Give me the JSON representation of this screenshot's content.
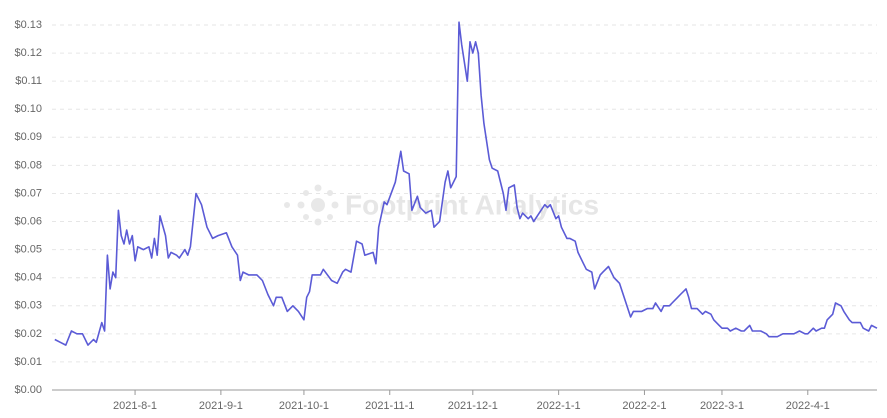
{
  "chart_data": {
    "type": "line",
    "watermark": "Footprint Analytics",
    "x": [
      "2021-07-03",
      "2021-07-05",
      "2021-07-07",
      "2021-07-09",
      "2021-07-11",
      "2021-07-13",
      "2021-07-15",
      "2021-07-17",
      "2021-07-18",
      "2021-07-20",
      "2021-07-21",
      "2021-07-22",
      "2021-07-23",
      "2021-07-24",
      "2021-07-25",
      "2021-07-26",
      "2021-07-27",
      "2021-07-28",
      "2021-07-29",
      "2021-07-30",
      "2021-07-31",
      "2021-08-01",
      "2021-08-02",
      "2021-08-04",
      "2021-08-06",
      "2021-08-07",
      "2021-08-08",
      "2021-08-09",
      "2021-08-10",
      "2021-08-12",
      "2021-08-13",
      "2021-08-14",
      "2021-08-16",
      "2021-08-17",
      "2021-08-19",
      "2021-08-20",
      "2021-08-21",
      "2021-08-23",
      "2021-08-25",
      "2021-08-27",
      "2021-08-29",
      "2021-08-31",
      "2021-09-03",
      "2021-09-05",
      "2021-09-07",
      "2021-09-08",
      "2021-09-09",
      "2021-09-11",
      "2021-09-14",
      "2021-09-16",
      "2021-09-18",
      "2021-09-20",
      "2021-09-21",
      "2021-09-23",
      "2021-09-25",
      "2021-09-27",
      "2021-09-29",
      "2021-10-01",
      "2021-10-02",
      "2021-10-03",
      "2021-10-04",
      "2021-10-07",
      "2021-10-08",
      "2021-10-11",
      "2021-10-13",
      "2021-10-15",
      "2021-10-16",
      "2021-10-18",
      "2021-10-20",
      "2021-10-22",
      "2021-10-23",
      "2021-10-26",
      "2021-10-27",
      "2021-10-28",
      "2021-10-30",
      "2021-10-31",
      "2021-11-03",
      "2021-11-05",
      "2021-11-06",
      "2021-11-08",
      "2021-11-09",
      "2021-11-11",
      "2021-11-12",
      "2021-11-14",
      "2021-11-16",
      "2021-11-17",
      "2021-11-19",
      "2021-11-21",
      "2021-11-22",
      "2021-11-23",
      "2021-11-25",
      "2021-11-26",
      "2021-11-27",
      "2021-11-29",
      "2021-11-30",
      "2021-12-01",
      "2021-12-02",
      "2021-12-03",
      "2021-12-04",
      "2021-12-05",
      "2021-12-07",
      "2021-12-08",
      "2021-12-10",
      "2021-12-12",
      "2021-12-13",
      "2021-12-14",
      "2021-12-16",
      "2021-12-17",
      "2021-12-18",
      "2021-12-19",
      "2021-12-21",
      "2021-12-22",
      "2021-12-23",
      "2021-12-25",
      "2021-12-27",
      "2021-12-28",
      "2021-12-29",
      "2021-12-31",
      "2022-01-01",
      "2022-01-02",
      "2022-01-04",
      "2022-01-05",
      "2022-01-07",
      "2022-01-08",
      "2022-01-10",
      "2022-01-11",
      "2022-01-13",
      "2022-01-14",
      "2022-01-16",
      "2022-01-17",
      "2022-01-19",
      "2022-01-21",
      "2022-01-22",
      "2022-01-23",
      "2022-01-25",
      "2022-01-27",
      "2022-01-28",
      "2022-01-30",
      "2022-01-31",
      "2022-02-02",
      "2022-02-04",
      "2022-02-05",
      "2022-02-07",
      "2022-02-08",
      "2022-02-10",
      "2022-02-11",
      "2022-02-13",
      "2022-02-14",
      "2022-02-16",
      "2022-02-17",
      "2022-02-18",
      "2022-02-20",
      "2022-02-22",
      "2022-02-23",
      "2022-02-25",
      "2022-02-26",
      "2022-02-28",
      "2022-03-01",
      "2022-03-03",
      "2022-03-04",
      "2022-03-06",
      "2022-03-08",
      "2022-03-09",
      "2022-03-11",
      "2022-03-12",
      "2022-03-14",
      "2022-03-15",
      "2022-03-17",
      "2022-03-18",
      "2022-03-20",
      "2022-03-21",
      "2022-03-23",
      "2022-03-25",
      "2022-03-26",
      "2022-03-27",
      "2022-03-29",
      "2022-03-31",
      "2022-04-01",
      "2022-04-03",
      "2022-04-04",
      "2022-04-06",
      "2022-04-07",
      "2022-04-08",
      "2022-04-10",
      "2022-04-11",
      "2022-04-13",
      "2022-04-14",
      "2022-04-16",
      "2022-04-17",
      "2022-04-19",
      "2022-04-20",
      "2022-04-21",
      "2022-04-23",
      "2022-04-24",
      "2022-04-26"
    ],
    "series": [
      {
        "color": "#5b5bd6",
        "values": [
          0.018,
          0.017,
          0.016,
          0.021,
          0.02,
          0.02,
          0.016,
          0.018,
          0.017,
          0.024,
          0.021,
          0.048,
          0.036,
          0.042,
          0.04,
          0.064,
          0.055,
          0.052,
          0.057,
          0.052,
          0.055,
          0.046,
          0.051,
          0.05,
          0.051,
          0.047,
          0.054,
          0.048,
          0.062,
          0.055,
          0.047,
          0.049,
          0.048,
          0.047,
          0.05,
          0.048,
          0.051,
          0.07,
          0.066,
          0.058,
          0.054,
          0.055,
          0.056,
          0.051,
          0.048,
          0.039,
          0.042,
          0.041,
          0.041,
          0.039,
          0.034,
          0.03,
          0.033,
          0.033,
          0.028,
          0.03,
          0.028,
          0.025,
          0.033,
          0.035,
          0.041,
          0.041,
          0.043,
          0.039,
          0.038,
          0.042,
          0.043,
          0.042,
          0.053,
          0.052,
          0.048,
          0.049,
          0.045,
          0.058,
          0.067,
          0.066,
          0.074,
          0.085,
          0.078,
          0.077,
          0.064,
          0.069,
          0.065,
          0.063,
          0.064,
          0.058,
          0.06,
          0.074,
          0.078,
          0.072,
          0.076,
          0.131,
          0.123,
          0.11,
          0.124,
          0.12,
          0.124,
          0.12,
          0.105,
          0.095,
          0.082,
          0.079,
          0.078,
          0.07,
          0.064,
          0.072,
          0.073,
          0.065,
          0.061,
          0.063,
          0.061,
          0.062,
          0.06,
          0.063,
          0.066,
          0.065,
          0.066,
          0.061,
          0.062,
          0.058,
          0.054,
          0.054,
          0.053,
          0.049,
          0.045,
          0.043,
          0.042,
          0.036,
          0.041,
          0.042,
          0.044,
          0.04,
          0.039,
          0.038,
          0.032,
          0.026,
          0.028,
          0.028,
          0.028,
          0.029,
          0.029,
          0.031,
          0.028,
          0.03,
          0.03,
          0.031,
          0.033,
          0.034,
          0.036,
          0.033,
          0.029,
          0.029,
          0.027,
          0.028,
          0.027,
          0.025,
          0.023,
          0.022,
          0.022,
          0.021,
          0.022,
          0.021,
          0.021,
          0.023,
          0.021,
          0.021,
          0.021,
          0.02,
          0.019,
          0.019,
          0.019,
          0.02,
          0.02,
          0.02,
          0.02,
          0.021,
          0.02,
          0.02,
          0.022,
          0.021,
          0.022,
          0.022,
          0.025,
          0.027,
          0.031,
          0.03,
          0.028,
          0.025,
          0.024,
          0.024,
          0.024,
          0.022,
          0.021,
          0.023,
          0.022
        ]
      }
    ],
    "xlim": [
      "2021-07-02",
      "2022-04-26"
    ],
    "xticks": [
      {
        "value": "2021-08-01",
        "label": "2021-8-1"
      },
      {
        "value": "2021-09-01",
        "label": "2021-9-1"
      },
      {
        "value": "2021-10-01",
        "label": "2021-10-1"
      },
      {
        "value": "2021-11-01",
        "label": "2021-11-1"
      },
      {
        "value": "2021-12-01",
        "label": "2021-12-1"
      },
      {
        "value": "2022-01-01",
        "label": "2022-1-1"
      },
      {
        "value": "2022-02-01",
        "label": "2022-2-1"
      },
      {
        "value": "2022-03-01",
        "label": "2022-3-1"
      },
      {
        "value": "2022-04-01",
        "label": "2022-4-1"
      }
    ],
    "ylim": [
      0,
      0.13
    ],
    "yticks": [
      {
        "value": 0,
        "label": "$0.00"
      },
      {
        "value": 0.01,
        "label": "$0.01"
      },
      {
        "value": 0.02,
        "label": "$0.02"
      },
      {
        "value": 0.03,
        "label": "$0.03"
      },
      {
        "value": 0.04,
        "label": "$0.04"
      },
      {
        "value": 0.05,
        "label": "$0.05"
      },
      {
        "value": 0.06,
        "label": "$0.06"
      },
      {
        "value": 0.07,
        "label": "$0.07"
      },
      {
        "value": 0.08,
        "label": "$0.08"
      },
      {
        "value": 0.09,
        "label": "$0.09"
      },
      {
        "value": 0.1,
        "label": "$0.10"
      },
      {
        "value": 0.11,
        "label": "$0.11"
      },
      {
        "value": 0.12,
        "label": "$0.12"
      },
      {
        "value": 0.13,
        "label": "$0.13"
      }
    ],
    "grid": true
  }
}
